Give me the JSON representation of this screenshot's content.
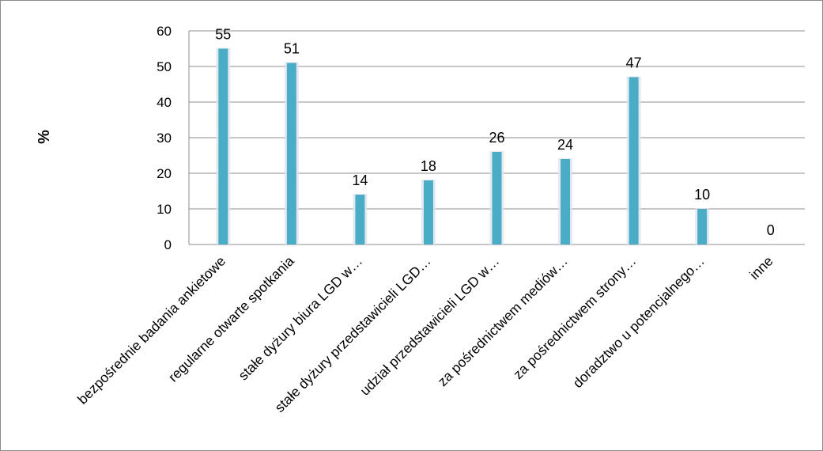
{
  "chart_data": {
    "type": "bar",
    "ylabel": "%",
    "ylim": [
      0,
      60
    ],
    "yticks": [
      0,
      10,
      20,
      30,
      40,
      50,
      60
    ],
    "grid": true,
    "bar_color": "#4bacc6",
    "categories": [
      "bezpośrednie badania ankietowe",
      "regularne otwarte spotkania",
      "stałe dyżury biura LGD w…",
      "stałe dyżury przedstawicieli LGD…",
      "udział przedstawicieli LGD w…",
      "za pośrednictwem mediów…",
      "za pośrednictwem strony…",
      "doradztwo u potencjalnego…",
      "inne"
    ],
    "values": [
      55,
      51,
      14,
      18,
      26,
      24,
      47,
      10,
      0
    ]
  }
}
